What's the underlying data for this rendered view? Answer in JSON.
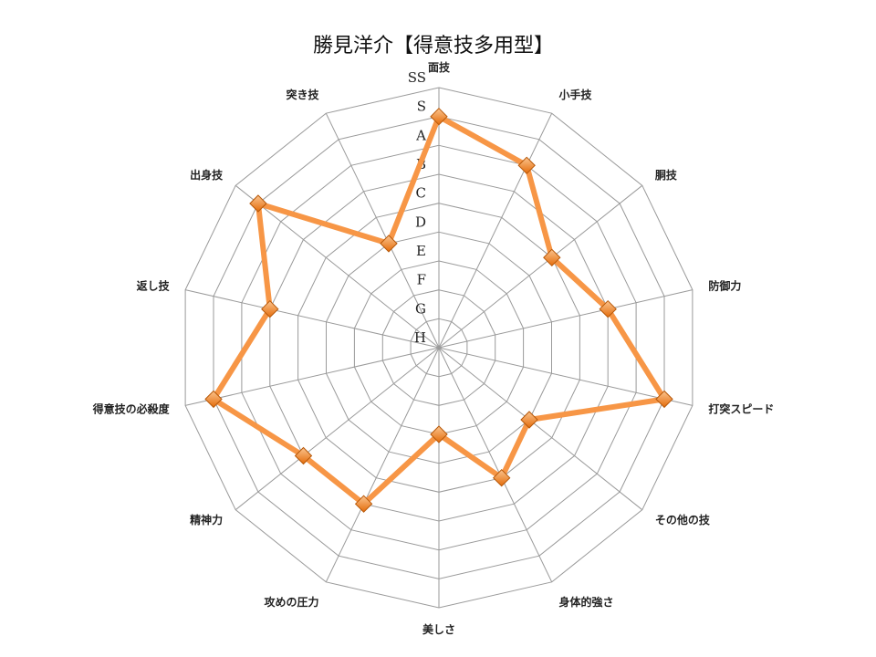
{
  "chart_data": {
    "type": "radar",
    "title": "勝見洋介【得意技多用型】",
    "axes": [
      "面技",
      "小手技",
      "胴技",
      "防御力",
      "打突スピード",
      "その他の技",
      "身体的強さ",
      "美しさ",
      "攻めの圧力",
      "精神力",
      "得意技の必殺度",
      "返し技",
      "出身技",
      "突き技"
    ],
    "scale": [
      "H",
      "G",
      "F",
      "E",
      "D",
      "C",
      "B",
      "A",
      "S",
      "SS"
    ],
    "range": [
      0,
      9
    ],
    "series": [
      {
        "values": [
          "S",
          "A",
          "C",
          "B",
          "S",
          "D",
          "C",
          "E",
          "B",
          "B",
          "S",
          "B",
          "S",
          "D"
        ],
        "color": "#F79646",
        "marker": "diamond"
      }
    ],
    "grid": true,
    "legend": "none"
  }
}
